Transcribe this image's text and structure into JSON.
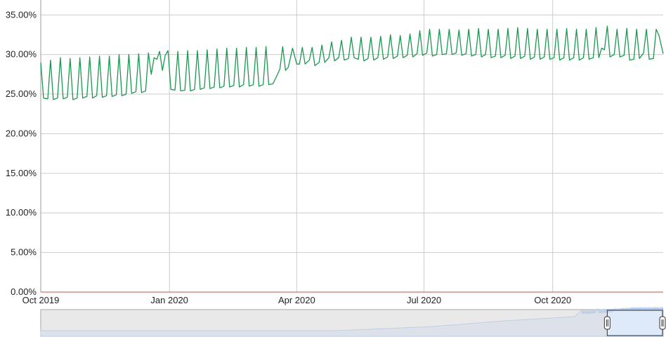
{
  "chart_data": {
    "type": "line",
    "y_unit": "%",
    "ylim": [
      0,
      36
    ],
    "y_ticks": [
      "0.00%",
      "5.00%",
      "10.00%",
      "15.00%",
      "20.00%",
      "25.00%",
      "30.00%",
      "35.00%"
    ],
    "y_tick_values": [
      0,
      5,
      10,
      15,
      20,
      25,
      30,
      35
    ],
    "x_range": [
      "2019-10-01",
      "2020-12-19"
    ],
    "x_ticks": [
      {
        "label": "Oct 2019",
        "date": "2019-10-01"
      },
      {
        "label": "Jan 2020",
        "date": "2020-01-01"
      },
      {
        "label": "Apr 2020",
        "date": "2020-04-01"
      },
      {
        "label": "Jul 2020",
        "date": "2020-07-01"
      },
      {
        "label": "Oct 2020",
        "date": "2020-10-01"
      }
    ],
    "grid": true,
    "colors": {
      "line": "#1a9850",
      "grid": "#cccccc",
      "baseline": "#c0504d",
      "navigator": "#a9c4ea"
    },
    "series": [
      {
        "values": [
          [
            "2019-10-01",
            29.0
          ],
          [
            "2019-10-03",
            24.5
          ],
          [
            "2019-10-06",
            24.4
          ],
          [
            "2019-10-08",
            29.3
          ],
          [
            "2019-10-10",
            24.3
          ],
          [
            "2019-10-13",
            24.5
          ],
          [
            "2019-10-15",
            29.6
          ],
          [
            "2019-10-17",
            24.4
          ],
          [
            "2019-10-20",
            24.6
          ],
          [
            "2019-10-22",
            29.5
          ],
          [
            "2019-10-24",
            24.3
          ],
          [
            "2019-10-27",
            24.5
          ],
          [
            "2019-10-29",
            29.6
          ],
          [
            "2019-10-31",
            24.5
          ],
          [
            "2019-11-03",
            24.7
          ],
          [
            "2019-11-05",
            29.7
          ],
          [
            "2019-11-07",
            24.5
          ],
          [
            "2019-11-10",
            24.8
          ],
          [
            "2019-11-12",
            29.8
          ],
          [
            "2019-11-14",
            24.6
          ],
          [
            "2019-11-17",
            24.8
          ],
          [
            "2019-11-19",
            29.8
          ],
          [
            "2019-11-21",
            24.7
          ],
          [
            "2019-11-24",
            24.9
          ],
          [
            "2019-11-26",
            30.0
          ],
          [
            "2019-11-28",
            24.8
          ],
          [
            "2019-12-01",
            25.0
          ],
          [
            "2019-12-03",
            30.0
          ],
          [
            "2019-12-05",
            25.1
          ],
          [
            "2019-12-08",
            25.3
          ],
          [
            "2019-12-10",
            30.1
          ],
          [
            "2019-12-12",
            25.2
          ],
          [
            "2019-12-15",
            25.4
          ],
          [
            "2019-12-17",
            30.2
          ],
          [
            "2019-12-19",
            27.5
          ],
          [
            "2019-12-21",
            29.6
          ],
          [
            "2019-12-23",
            29.4
          ],
          [
            "2019-12-25",
            30.4
          ],
          [
            "2019-12-27",
            28.0
          ],
          [
            "2019-12-29",
            29.9
          ],
          [
            "2019-12-31",
            30.5
          ],
          [
            "2020-01-02",
            25.6
          ],
          [
            "2020-01-05",
            25.5
          ],
          [
            "2020-01-07",
            30.4
          ],
          [
            "2020-01-09",
            25.4
          ],
          [
            "2020-01-12",
            25.5
          ],
          [
            "2020-01-14",
            30.5
          ],
          [
            "2020-01-16",
            25.4
          ],
          [
            "2020-01-19",
            25.6
          ],
          [
            "2020-01-21",
            30.5
          ],
          [
            "2020-01-23",
            25.6
          ],
          [
            "2020-01-26",
            25.8
          ],
          [
            "2020-01-28",
            30.6
          ],
          [
            "2020-01-30",
            25.7
          ],
          [
            "2020-02-02",
            25.9
          ],
          [
            "2020-02-04",
            30.7
          ],
          [
            "2020-02-06",
            25.8
          ],
          [
            "2020-02-09",
            26.0
          ],
          [
            "2020-02-11",
            30.8
          ],
          [
            "2020-02-13",
            25.9
          ],
          [
            "2020-02-16",
            26.1
          ],
          [
            "2020-02-18",
            30.8
          ],
          [
            "2020-02-20",
            25.9
          ],
          [
            "2020-02-23",
            26.2
          ],
          [
            "2020-02-25",
            30.9
          ],
          [
            "2020-02-27",
            26.0
          ],
          [
            "2020-03-01",
            26.2
          ],
          [
            "2020-03-03",
            30.9
          ],
          [
            "2020-03-05",
            26.0
          ],
          [
            "2020-03-08",
            26.2
          ],
          [
            "2020-03-10",
            31.0
          ],
          [
            "2020-03-12",
            26.2
          ],
          [
            "2020-03-15",
            26.3
          ],
          [
            "2020-03-18",
            27.4
          ],
          [
            "2020-03-20",
            28.2
          ],
          [
            "2020-03-22",
            31.0
          ],
          [
            "2020-03-24",
            28.0
          ],
          [
            "2020-03-26",
            28.4
          ],
          [
            "2020-03-29",
            30.8
          ],
          [
            "2020-04-01",
            28.8
          ],
          [
            "2020-04-03",
            28.8
          ],
          [
            "2020-04-05",
            30.9
          ],
          [
            "2020-04-07",
            28.8
          ],
          [
            "2020-04-10",
            29.3
          ],
          [
            "2020-04-12",
            30.9
          ],
          [
            "2020-04-14",
            28.6
          ],
          [
            "2020-04-17",
            29.0
          ],
          [
            "2020-04-19",
            31.2
          ],
          [
            "2020-04-21",
            29.0
          ],
          [
            "2020-04-24",
            29.6
          ],
          [
            "2020-04-26",
            31.6
          ],
          [
            "2020-04-28",
            29.2
          ],
          [
            "2020-05-01",
            29.6
          ],
          [
            "2020-05-03",
            31.8
          ],
          [
            "2020-05-05",
            29.3
          ],
          [
            "2020-05-08",
            29.5
          ],
          [
            "2020-05-10",
            32.2
          ],
          [
            "2020-05-12",
            29.6
          ],
          [
            "2020-05-15",
            29.4
          ],
          [
            "2020-05-17",
            32.2
          ],
          [
            "2020-05-19",
            29.2
          ],
          [
            "2020-05-22",
            29.5
          ],
          [
            "2020-05-24",
            32.2
          ],
          [
            "2020-05-26",
            29.3
          ],
          [
            "2020-05-29",
            29.6
          ],
          [
            "2020-05-31",
            32.3
          ],
          [
            "2020-06-02",
            29.4
          ],
          [
            "2020-06-05",
            29.7
          ],
          [
            "2020-06-07",
            32.5
          ],
          [
            "2020-06-09",
            29.5
          ],
          [
            "2020-06-12",
            29.8
          ],
          [
            "2020-06-14",
            32.4
          ],
          [
            "2020-06-16",
            29.6
          ],
          [
            "2020-06-19",
            29.9
          ],
          [
            "2020-06-21",
            32.6
          ],
          [
            "2020-06-23",
            29.7
          ],
          [
            "2020-06-26",
            30.1
          ],
          [
            "2020-06-28",
            33.0
          ],
          [
            "2020-06-30",
            29.9
          ],
          [
            "2020-07-03",
            30.2
          ],
          [
            "2020-07-05",
            33.2
          ],
          [
            "2020-07-07",
            29.8
          ],
          [
            "2020-07-10",
            30.0
          ],
          [
            "2020-07-12",
            33.2
          ],
          [
            "2020-07-14",
            30.0
          ],
          [
            "2020-07-17",
            30.1
          ],
          [
            "2020-07-19",
            33.2
          ],
          [
            "2020-07-21",
            30.0
          ],
          [
            "2020-07-24",
            30.2
          ],
          [
            "2020-07-26",
            33.1
          ],
          [
            "2020-07-28",
            29.9
          ],
          [
            "2020-07-31",
            30.1
          ],
          [
            "2020-08-02",
            33.2
          ],
          [
            "2020-08-04",
            29.8
          ],
          [
            "2020-08-07",
            30.0
          ],
          [
            "2020-08-09",
            33.3
          ],
          [
            "2020-08-11",
            29.7
          ],
          [
            "2020-08-14",
            30.0
          ],
          [
            "2020-08-16",
            33.2
          ],
          [
            "2020-08-18",
            29.6
          ],
          [
            "2020-08-21",
            29.8
          ],
          [
            "2020-08-23",
            33.2
          ],
          [
            "2020-08-25",
            29.6
          ],
          [
            "2020-08-28",
            29.9
          ],
          [
            "2020-08-30",
            33.3
          ],
          [
            "2020-09-01",
            29.5
          ],
          [
            "2020-09-04",
            29.8
          ],
          [
            "2020-09-06",
            33.4
          ],
          [
            "2020-09-08",
            29.5
          ],
          [
            "2020-09-11",
            29.8
          ],
          [
            "2020-09-13",
            33.3
          ],
          [
            "2020-09-15",
            29.4
          ],
          [
            "2020-09-18",
            29.7
          ],
          [
            "2020-09-20",
            33.2
          ],
          [
            "2020-09-22",
            29.4
          ],
          [
            "2020-09-25",
            29.7
          ],
          [
            "2020-09-27",
            33.2
          ],
          [
            "2020-09-29",
            29.4
          ],
          [
            "2020-10-02",
            29.6
          ],
          [
            "2020-10-04",
            33.2
          ],
          [
            "2020-10-06",
            29.3
          ],
          [
            "2020-10-09",
            29.6
          ],
          [
            "2020-10-11",
            33.3
          ],
          [
            "2020-10-13",
            29.3
          ],
          [
            "2020-10-16",
            29.6
          ],
          [
            "2020-10-18",
            33.2
          ],
          [
            "2020-10-20",
            29.3
          ],
          [
            "2020-10-23",
            29.6
          ],
          [
            "2020-10-25",
            33.2
          ],
          [
            "2020-10-27",
            29.4
          ],
          [
            "2020-10-30",
            29.6
          ],
          [
            "2020-11-01",
            33.4
          ],
          [
            "2020-11-03",
            29.6
          ],
          [
            "2020-11-05",
            30.8
          ],
          [
            "2020-11-07",
            30.6
          ],
          [
            "2020-11-09",
            33.6
          ],
          [
            "2020-11-11",
            29.7
          ],
          [
            "2020-11-14",
            30.0
          ],
          [
            "2020-11-16",
            33.2
          ],
          [
            "2020-11-18",
            29.7
          ],
          [
            "2020-11-21",
            29.9
          ],
          [
            "2020-11-23",
            33.3
          ],
          [
            "2020-11-25",
            29.3
          ],
          [
            "2020-11-28",
            29.4
          ],
          [
            "2020-11-30",
            33.2
          ],
          [
            "2020-12-02",
            29.5
          ],
          [
            "2020-12-05",
            30.2
          ],
          [
            "2020-12-07",
            33.2
          ],
          [
            "2020-12-09",
            29.4
          ],
          [
            "2020-12-12",
            29.5
          ],
          [
            "2020-12-14",
            33.2
          ],
          [
            "2020-12-16",
            32.4
          ],
          [
            "2020-12-19",
            30.1
          ]
        ]
      }
    ]
  },
  "navigator": {
    "selection_start": "2020-11-09",
    "selection_end": "2020-12-19"
  }
}
